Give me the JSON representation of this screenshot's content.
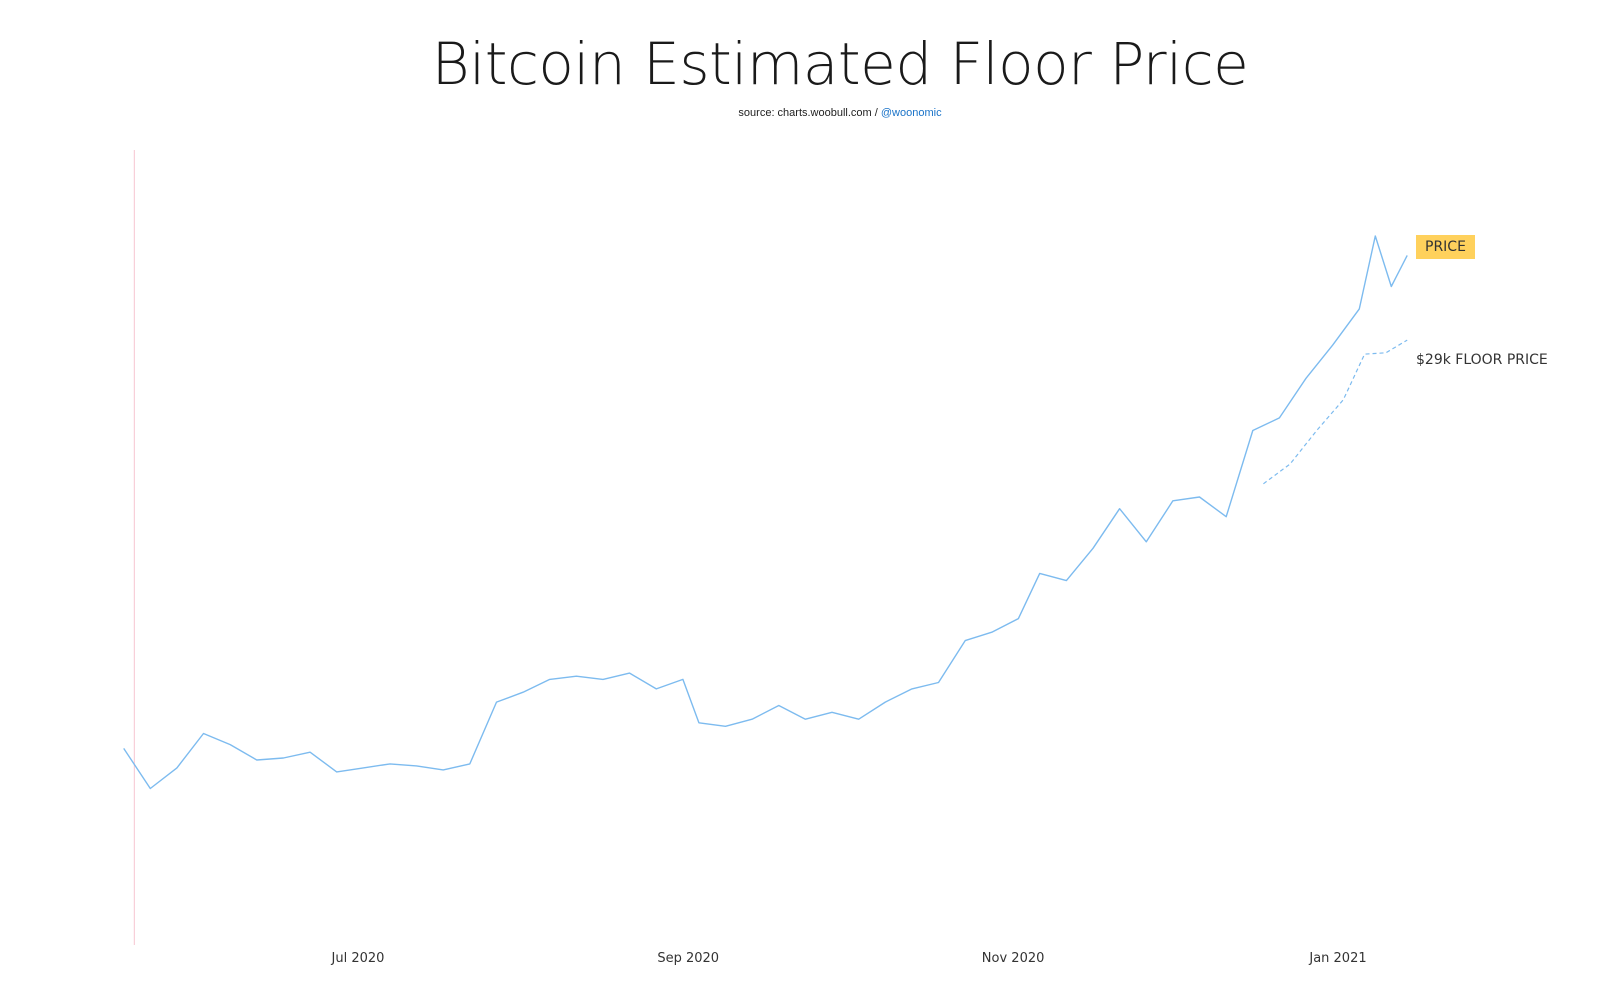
{
  "title": "Bitcoin Estimated Floor Price",
  "source": {
    "prefix": "source: charts.woobull.com / ",
    "handle": "@woonomic"
  },
  "colors": {
    "price_line": "#7dbbef",
    "floor_line": "#7dbbef",
    "marker_line": "#f6c4d0",
    "price_badge": "#ffd15c"
  },
  "labels": {
    "price": "PRICE",
    "floor": "$29k FLOOR PRICE"
  },
  "chart_data": {
    "type": "line",
    "title": "Bitcoin Estimated Floor Price",
    "x_tick_labels": [
      "Jul 2020",
      "Sep 2020",
      "Nov 2020",
      "Jan 2021"
    ],
    "x_ticks": [
      "2020-07-01",
      "2020-09-01",
      "2020-11-01",
      "2021-01-01"
    ],
    "y_axis_visible": false,
    "grid": false,
    "x_range": [
      "2020-05-18",
      "2021-01-31"
    ],
    "series": [
      {
        "name": "PRICE",
        "style": "solid",
        "x": [
          "2020-05-18",
          "2020-05-23",
          "2020-05-28",
          "2020-06-02",
          "2020-06-07",
          "2020-06-12",
          "2020-06-17",
          "2020-06-22",
          "2020-06-27",
          "2020-07-02",
          "2020-07-07",
          "2020-07-12",
          "2020-07-17",
          "2020-07-22",
          "2020-07-27",
          "2020-08-01",
          "2020-08-06",
          "2020-08-11",
          "2020-08-16",
          "2020-08-21",
          "2020-08-26",
          "2020-08-31",
          "2020-09-03",
          "2020-09-08",
          "2020-09-13",
          "2020-09-18",
          "2020-09-23",
          "2020-09-28",
          "2020-10-03",
          "2020-10-08",
          "2020-10-13",
          "2020-10-18",
          "2020-10-23",
          "2020-10-28",
          "2020-11-02",
          "2020-11-06",
          "2020-11-11",
          "2020-11-16",
          "2020-11-21",
          "2020-11-26",
          "2020-12-01",
          "2020-12-06",
          "2020-12-11",
          "2020-12-16",
          "2020-12-21",
          "2020-12-26",
          "2020-12-31",
          "2021-01-05",
          "2021-01-08",
          "2021-01-11",
          "2021-01-14"
        ],
        "y": [
          9700,
          8700,
          9200,
          10100,
          9800,
          9400,
          9450,
          9600,
          9100,
          9200,
          9300,
          9250,
          9150,
          9300,
          11000,
          11300,
          11700,
          11800,
          11700,
          11900,
          11400,
          11700,
          10400,
          10300,
          10500,
          10900,
          10500,
          10700,
          10500,
          11000,
          11400,
          11600,
          13000,
          13300,
          13800,
          15600,
          15300,
          16700,
          18600,
          17000,
          19000,
          19200,
          18200,
          23000,
          23800,
          26500,
          29000,
          32000,
          39000,
          34000,
          37000
        ]
      },
      {
        "name": "$29k FLOOR PRICE",
        "style": "dashed",
        "x": [
          "2020-12-18",
          "2020-12-23",
          "2020-12-28",
          "2021-01-02",
          "2021-01-06",
          "2021-01-10",
          "2021-01-14"
        ],
        "y": [
          19900,
          21000,
          23000,
          25000,
          28300,
          28400,
          29400
        ]
      }
    ],
    "vertical_marker": "2020-05-20"
  }
}
